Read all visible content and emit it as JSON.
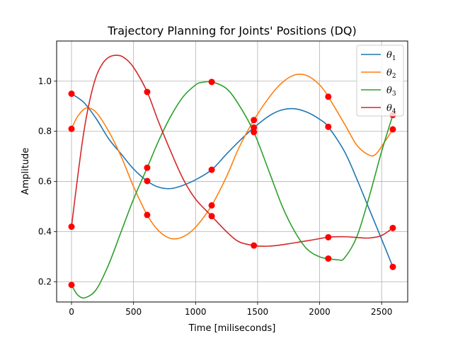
{
  "chart_data": {
    "type": "line",
    "title": "Trajectory Planning for Joints' Positions (DQ)",
    "xlabel": "Time [miliseconds]",
    "ylabel": "Amplitude",
    "xlim": [
      -120,
      2710
    ],
    "ylim": [
      0.12,
      1.16
    ],
    "xticks": [
      0,
      500,
      1000,
      1500,
      2000,
      2500
    ],
    "yticks": [
      0.2,
      0.4,
      0.6,
      0.8,
      1.0
    ],
    "xtick_labels": [
      "0",
      "500",
      "1000",
      "1500",
      "2000",
      "2500"
    ],
    "ytick_labels": [
      "0.2",
      "0.4",
      "0.6",
      "0.8",
      "1.0"
    ],
    "grid": true,
    "legend_position": "top-right",
    "series": [
      {
        "name": "θ1",
        "legend_base": "θ",
        "legend_sub": "1",
        "color": "#1f77b4",
        "knots_x": [
          0,
          610,
          1130,
          1470,
          2070,
          2590
        ],
        "knots_y": [
          0.95,
          0.602,
          0.647,
          0.815,
          0.818,
          0.26
        ],
        "curve_x": [
          0,
          100,
          200,
          300,
          400,
          500,
          610,
          700,
          800,
          900,
          1000,
          1130,
          1250,
          1350,
          1470,
          1600,
          1700,
          1800,
          1900,
          2000,
          2070,
          2200,
          2300,
          2400,
          2500,
          2590
        ],
        "curve_y": [
          0.95,
          0.915,
          0.85,
          0.77,
          0.71,
          0.65,
          0.602,
          0.578,
          0.572,
          0.585,
          0.607,
          0.647,
          0.71,
          0.76,
          0.815,
          0.864,
          0.886,
          0.89,
          0.876,
          0.848,
          0.818,
          0.72,
          0.61,
          0.49,
          0.37,
          0.26
        ]
      },
      {
        "name": "θ2",
        "legend_base": "θ",
        "legend_sub": "2",
        "color": "#ff7f0e",
        "knots_x": [
          0,
          610,
          1130,
          1470,
          2070,
          2590
        ],
        "knots_y": [
          0.81,
          0.467,
          0.505,
          0.845,
          0.938,
          0.808
        ],
        "curve_x": [
          0,
          50,
          120,
          200,
          300,
          400,
          500,
          610,
          700,
          800,
          900,
          1000,
          1130,
          1250,
          1350,
          1470,
          1600,
          1700,
          1800,
          1900,
          2000,
          2070,
          2200,
          2300,
          2400,
          2450,
          2500,
          2590
        ],
        "curve_y": [
          0.81,
          0.86,
          0.893,
          0.875,
          0.8,
          0.7,
          0.58,
          0.467,
          0.405,
          0.373,
          0.38,
          0.418,
          0.505,
          0.62,
          0.735,
          0.845,
          0.94,
          0.995,
          1.025,
          1.022,
          0.985,
          0.938,
          0.83,
          0.745,
          0.705,
          0.708,
          0.74,
          0.808
        ]
      },
      {
        "name": "θ3",
        "legend_base": "θ",
        "legend_sub": "3",
        "color": "#2ca02c",
        "knots_x": [
          0,
          610,
          1130,
          1470,
          2070,
          2590
        ],
        "knots_y": [
          0.188,
          0.655,
          0.997,
          0.797,
          0.293,
          0.865
        ],
        "curve_x": [
          0,
          50,
          110,
          200,
          300,
          400,
          500,
          610,
          700,
          800,
          900,
          1000,
          1050,
          1130,
          1250,
          1350,
          1470,
          1600,
          1700,
          1800,
          1900,
          2000,
          2070,
          2150,
          2200,
          2300,
          2400,
          2500,
          2590
        ],
        "curve_y": [
          0.188,
          0.148,
          0.137,
          0.17,
          0.27,
          0.4,
          0.53,
          0.655,
          0.76,
          0.86,
          0.938,
          0.985,
          0.995,
          0.997,
          0.97,
          0.905,
          0.797,
          0.63,
          0.5,
          0.4,
          0.33,
          0.3,
          0.293,
          0.288,
          0.295,
          0.38,
          0.54,
          0.72,
          0.865
        ]
      },
      {
        "name": "θ4",
        "legend_base": "θ",
        "legend_sub": "4",
        "color": "#d62728",
        "knots_x": [
          0,
          610,
          1130,
          1470,
          2070,
          2590
        ],
        "knots_y": [
          0.42,
          0.957,
          0.462,
          0.345,
          0.378,
          0.415
        ],
        "curve_x": [
          0,
          50,
          100,
          150,
          200,
          250,
          300,
          360,
          420,
          500,
          610,
          700,
          800,
          900,
          1000,
          1130,
          1250,
          1350,
          1470,
          1550,
          1650,
          1750,
          1850,
          1950,
          2070,
          2200,
          2300,
          2400,
          2500,
          2590
        ],
        "curve_y": [
          0.42,
          0.62,
          0.8,
          0.93,
          1.02,
          1.07,
          1.095,
          1.103,
          1.095,
          1.055,
          0.957,
          0.84,
          0.72,
          0.61,
          0.53,
          0.462,
          0.4,
          0.36,
          0.345,
          0.342,
          0.345,
          0.352,
          0.36,
          0.368,
          0.378,
          0.38,
          0.377,
          0.375,
          0.385,
          0.415
        ]
      }
    ]
  }
}
